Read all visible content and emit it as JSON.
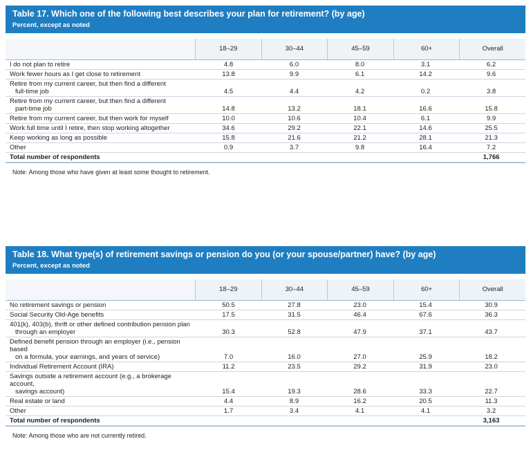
{
  "table17": {
    "title": "Table 17. Which one of the following best describes your plan for retirement? (by age)",
    "subtitle": "Percent, except as noted",
    "columns": [
      "18–29",
      "30–44",
      "45–59",
      "60+",
      "Overall"
    ],
    "rows": [
      {
        "label": [
          "I do not plan to retire"
        ],
        "values": [
          "4.8",
          "6.0",
          "8.0",
          "3.1",
          "6.2"
        ]
      },
      {
        "label": [
          "Work fewer hours as I get close to retirement"
        ],
        "values": [
          "13.8",
          "9.9",
          "6.1",
          "14.2",
          "9.6"
        ]
      },
      {
        "label": [
          "Retire from my current career, but then find a different",
          "full-time job"
        ],
        "values": [
          "4.5",
          "4.4",
          "4.2",
          "0.2",
          "3.8"
        ]
      },
      {
        "label": [
          "Retire from my current career, but then find a different",
          "part-time job"
        ],
        "values": [
          "14.8",
          "13.2",
          "18.1",
          "16.6",
          "15.8"
        ]
      },
      {
        "label": [
          "Retire from my current career, but then work for myself"
        ],
        "values": [
          "10.0",
          "10.6",
          "10.4",
          "6.1",
          "9.9"
        ]
      },
      {
        "label": [
          "Work full time until I retire, then stop working altogether"
        ],
        "values": [
          "34.6",
          "29.2",
          "22.1",
          "14.6",
          "25.5"
        ]
      },
      {
        "label": [
          "Keep working as long as possible"
        ],
        "values": [
          "15.8",
          "21.6",
          "21.2",
          "28.1",
          "21.3"
        ]
      },
      {
        "label": [
          "Other"
        ],
        "values": [
          "0.9",
          "3.7",
          "9.8",
          "16.4",
          "7.2"
        ]
      }
    ],
    "total_label": "Total number of respondents",
    "total_value": "1,766",
    "note": "Note: Among those who have given at least some thought to retirement."
  },
  "table18": {
    "title": "Table 18. What type(s) of retirement savings or pension do you (or your spouse/partner) have? (by age)",
    "subtitle": "Percent, except as noted",
    "columns": [
      "18–29",
      "30–44",
      "45–59",
      "60+",
      "Overall"
    ],
    "rows": [
      {
        "label": [
          "No retirement savings or pension"
        ],
        "values": [
          "50.5",
          "27.8",
          "23.0",
          "15.4",
          "30.9"
        ]
      },
      {
        "label": [
          "Social Security Old-Age benefits"
        ],
        "values": [
          "17.5",
          "31.5",
          "46.4",
          "67.6",
          "36.3"
        ]
      },
      {
        "label": [
          "401(k), 403(b), thrift or other defined contribution pension plan",
          "through an employer"
        ],
        "values": [
          "30.3",
          "52.8",
          "47.9",
          "37.1",
          "43.7"
        ]
      },
      {
        "label": [
          "Defined benefit pension through an employer (i.e., pension based",
          "on a formula, your earnings, and years of service)"
        ],
        "values": [
          "7.0",
          "16.0",
          "27.0",
          "25.9",
          "18.2"
        ]
      },
      {
        "label": [
          "Individual Retirement Account (IRA)"
        ],
        "values": [
          "11.2",
          "23.5",
          "29.2",
          "31.9",
          "23.0"
        ]
      },
      {
        "label": [
          "Savings outside a retirement account (e.g., a brokerage account,",
          "savings account)"
        ],
        "values": [
          "15.4",
          "19.3",
          "28.6",
          "33.3",
          "22.7"
        ]
      },
      {
        "label": [
          "Real estate or land"
        ],
        "values": [
          "4.4",
          "8.9",
          "16.2",
          "20.5",
          "11.3"
        ]
      },
      {
        "label": [
          "Other"
        ],
        "values": [
          "1.7",
          "3.4",
          "4.1",
          "4.1",
          "3.2"
        ]
      }
    ],
    "total_label": "Total number of respondents",
    "total_value": "3,163",
    "note": "Note: Among those who are not currently retired."
  }
}
